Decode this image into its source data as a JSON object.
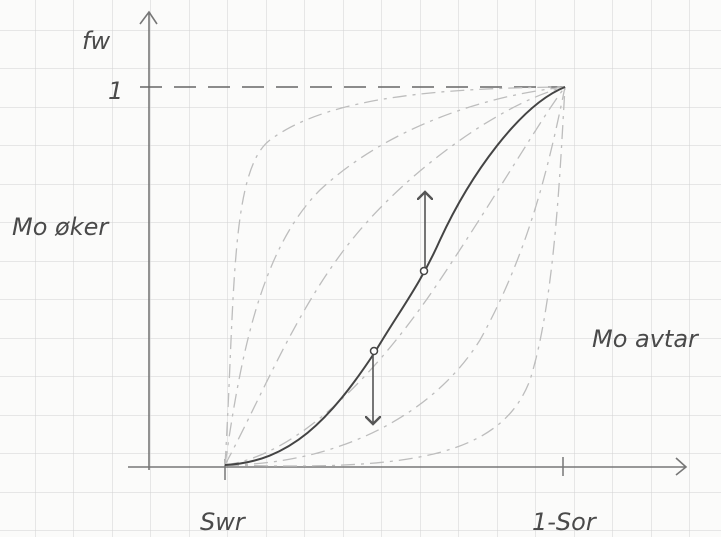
{
  "axes": {
    "y_label": "fw",
    "y_tick": "1",
    "x_ticks": [
      "Swr",
      "1-Sor"
    ]
  },
  "annotations": [
    "Mo øker",
    "Mo avtar"
  ]
}
